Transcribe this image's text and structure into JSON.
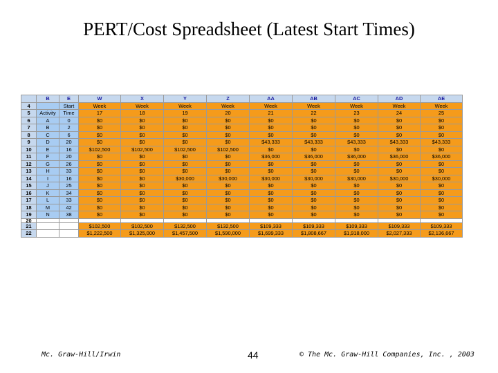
{
  "title": "PERT/Cost Spreadsheet (Latest Start Times)",
  "spreadsheet": {
    "column_headers": [
      "B",
      "E",
      "W",
      "X",
      "Y",
      "Z",
      "AA",
      "AB",
      "AC",
      "AD",
      "AE"
    ],
    "rows": [
      {
        "num": "4",
        "cells": [
          "",
          "Start",
          "Week",
          "Week",
          "Week",
          "Week",
          "Week",
          "Week",
          "Week",
          "Week",
          "Week"
        ]
      },
      {
        "num": "5",
        "cells": [
          "Activity",
          "Time",
          "17",
          "18",
          "19",
          "20",
          "21",
          "22",
          "23",
          "24",
          "25"
        ]
      },
      {
        "num": "6",
        "cells": [
          "A",
          "0",
          "$0",
          "$0",
          "$0",
          "$0",
          "$0",
          "$0",
          "$0",
          "$0",
          "$0"
        ]
      },
      {
        "num": "7",
        "cells": [
          "B",
          "2",
          "$0",
          "$0",
          "$0",
          "$0",
          "$0",
          "$0",
          "$0",
          "$0",
          "$0"
        ]
      },
      {
        "num": "8",
        "cells": [
          "C",
          "6",
          "$0",
          "$0",
          "$0",
          "$0",
          "$0",
          "$0",
          "$0",
          "$0",
          "$0"
        ]
      },
      {
        "num": "9",
        "cells": [
          "D",
          "20",
          "$0",
          "$0",
          "$0",
          "$0",
          "$43,333",
          "$43,333",
          "$43,333",
          "$43,333",
          "$43,333"
        ]
      },
      {
        "num": "10",
        "cells": [
          "E",
          "16",
          "$102,500",
          "$102,500",
          "$102,500",
          "$102,500",
          "$0",
          "$0",
          "$0",
          "$0",
          "$0"
        ]
      },
      {
        "num": "11",
        "cells": [
          "F",
          "20",
          "$0",
          "$0",
          "$0",
          "$0",
          "$36,000",
          "$36,000",
          "$36,000",
          "$36,000",
          "$36,000"
        ]
      },
      {
        "num": "12",
        "cells": [
          "G",
          "26",
          "$0",
          "$0",
          "$0",
          "$0",
          "$0",
          "$0",
          "$0",
          "$0",
          "$0"
        ]
      },
      {
        "num": "13",
        "cells": [
          "H",
          "33",
          "$0",
          "$0",
          "$0",
          "$0",
          "$0",
          "$0",
          "$0",
          "$0",
          "$0"
        ]
      },
      {
        "num": "14",
        "cells": [
          "I",
          "16",
          "$0",
          "$0",
          "$30,000",
          "$30,000",
          "$30,000",
          "$30,000",
          "$30,000",
          "$30,000",
          "$30,000"
        ]
      },
      {
        "num": "15",
        "cells": [
          "J",
          "25",
          "$0",
          "$0",
          "$0",
          "$0",
          "$0",
          "$0",
          "$0",
          "$0",
          "$0"
        ]
      },
      {
        "num": "16",
        "cells": [
          "K",
          "34",
          "$0",
          "$0",
          "$0",
          "$0",
          "$0",
          "$0",
          "$0",
          "$0",
          "$0"
        ]
      },
      {
        "num": "17",
        "cells": [
          "L",
          "33",
          "$0",
          "$0",
          "$0",
          "$0",
          "$0",
          "$0",
          "$0",
          "$0",
          "$0"
        ]
      },
      {
        "num": "18",
        "cells": [
          "M",
          "42",
          "$0",
          "$0",
          "$0",
          "$0",
          "$0",
          "$0",
          "$0",
          "$0",
          "$0"
        ]
      },
      {
        "num": "19",
        "cells": [
          "N",
          "38",
          "$0",
          "$0",
          "$0",
          "$0",
          "$0",
          "$0",
          "$0",
          "$0",
          "$0"
        ]
      },
      {
        "num": "20",
        "cells": [
          "",
          "",
          "",
          "",
          "",
          "",
          "",
          "",
          "",
          "",
          ""
        ]
      },
      {
        "num": "21",
        "cells": [
          "",
          "",
          "$102,500",
          "$102,500",
          "$132,500",
          "$132,500",
          "$109,333",
          "$109,333",
          "$109,333",
          "$109,333",
          "$109,333"
        ]
      },
      {
        "num": "22",
        "cells": [
          "",
          "",
          "$1,222,500",
          "$1,325,000",
          "$1,457,500",
          "$1,590,000",
          "$1,699,333",
          "$1,808,667",
          "$1,918,000",
          "$2,027,333",
          "$2,136,667"
        ]
      }
    ]
  },
  "colors": {
    "orange": "#f59b1b",
    "blue": "#a8ccf2",
    "header": "#c6d8ee"
  },
  "footer": {
    "publisher": "Mc. Graw-Hill/Irwin",
    "page": "44",
    "copyright": "© The Mc. Graw-Hill Companies, Inc. , 2003"
  }
}
